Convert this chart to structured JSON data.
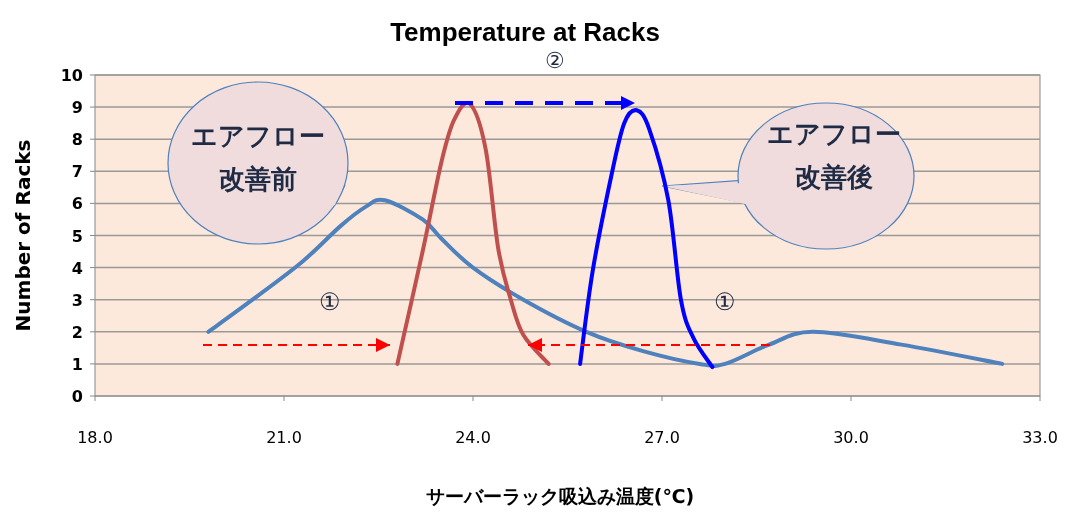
{
  "chart_data": {
    "type": "line",
    "title": "Temperature at Racks",
    "xlabel": "サーバーラック吸込み温度(℃)",
    "ylabel": "Number of Racks",
    "xlim": [
      18,
      33
    ],
    "xticks": [
      {
        "value": 18,
        "label": "18.0"
      },
      {
        "value": 21,
        "label": "21.0"
      },
      {
        "value": 24,
        "label": "24.0"
      },
      {
        "value": 27,
        "label": "27.0"
      },
      {
        "value": 30,
        "label": "30.0"
      },
      {
        "value": 33,
        "label": "33.0"
      }
    ],
    "ylim": [
      0,
      10
    ],
    "yticks": [
      0,
      1,
      2,
      3,
      4,
      5,
      6,
      7,
      8,
      9,
      10
    ],
    "grid": "y",
    "marker": "none",
    "line_style": "solid",
    "series": [
      {
        "color": "#4f81bd",
        "x": [
          19.8,
          20.5,
          21.3,
          21.9,
          22.3,
          22.6,
          23.2,
          23.5,
          24.0,
          24.8,
          25.8,
          26.7,
          27.6,
          28.0,
          28.7,
          29.4,
          30.8,
          32.4
        ],
        "values": [
          2.0,
          3.0,
          4.2,
          5.3,
          5.9,
          6.1,
          5.5,
          4.9,
          4.0,
          3.0,
          2.0,
          1.4,
          1.0,
          1.0,
          1.6,
          2.0,
          1.6,
          1.0
        ]
      },
      {
        "color": "#c0504d",
        "x": [
          22.8,
          23.2,
          23.5,
          23.7,
          23.95,
          24.2,
          24.4,
          24.6,
          24.8,
          25.2
        ],
        "values": [
          1.0,
          4.5,
          7.3,
          8.6,
          9.1,
          7.7,
          4.6,
          3.0,
          1.9,
          1.0
        ]
      },
      {
        "color": "#0000ff",
        "x": [
          25.7,
          25.9,
          26.2,
          26.4,
          26.6,
          26.8,
          27.1,
          27.3,
          27.5,
          27.8
        ],
        "values": [
          1.0,
          3.9,
          6.9,
          8.5,
          8.9,
          8.3,
          6.1,
          3.0,
          1.8,
          0.9
        ]
      }
    ],
    "annotations": [
      "エアフロー",
      "改善前",
      "エアフロー",
      "改善後",
      "①",
      "①",
      "②"
    ]
  }
}
